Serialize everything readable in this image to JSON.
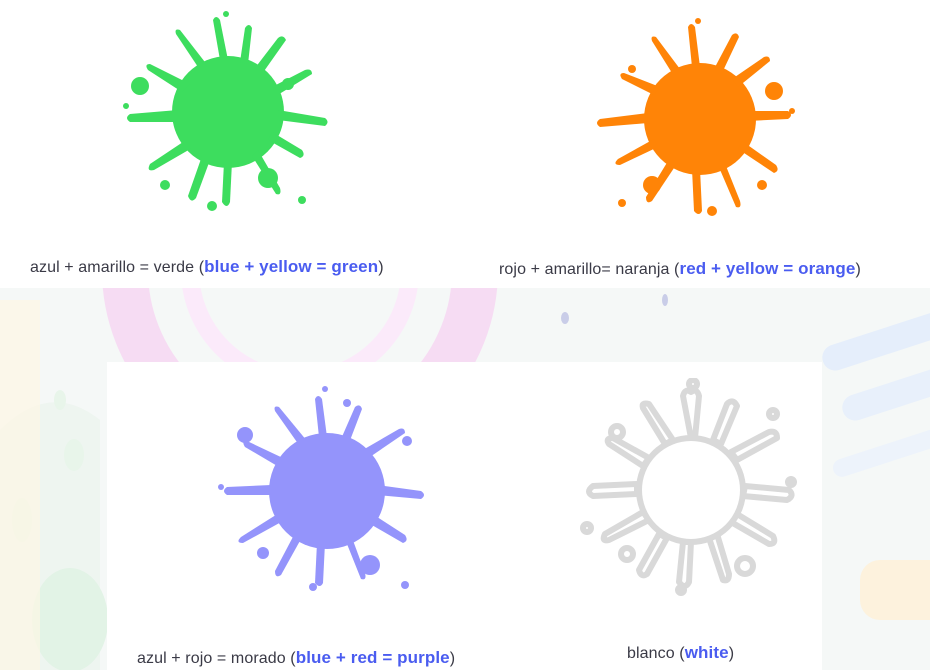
{
  "items": [
    {
      "es": "azul + amarillo = verde",
      "en": "blue + yellow = green",
      "color": "#3ddd5e",
      "icon": "green-paint-splash-icon"
    },
    {
      "es": "rojo + amarillo= naranja",
      "en": "red + yellow = orange",
      "color": "#ff8407",
      "icon": "orange-paint-splash-icon"
    },
    {
      "es": "azul + rojo = morado",
      "en": "blue + red = purple",
      "color": "#9494fb",
      "icon": "purple-paint-splash-icon"
    },
    {
      "es": "blanco",
      "en": "white",
      "color": "#ffffff",
      "outline": "#d9d9d9",
      "icon": "white-paint-splash-icon"
    }
  ],
  "accent_color": "#4a5cf0"
}
